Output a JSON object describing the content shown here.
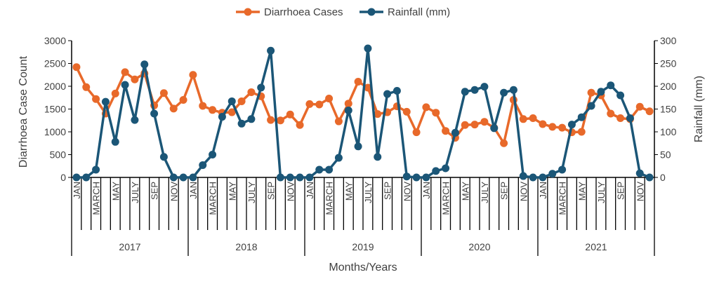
{
  "chart_data": {
    "type": "line",
    "xlabel": "Months/Years",
    "ylabel": "Diarrhoea Case Count",
    "y2label": "Rainfall (mm)",
    "ylim": [
      0,
      3000
    ],
    "y2lim": [
      0,
      300
    ],
    "yticks": [
      "0",
      "500",
      "1000",
      "1500",
      "2000",
      "2500",
      "3000"
    ],
    "y2ticks": [
      "0",
      "50",
      "100",
      "150",
      "200",
      "250",
      "300"
    ],
    "month_labels": [
      "JAN",
      "MARCH",
      "MAY",
      "JULY",
      "SEP",
      "NOV"
    ],
    "years": [
      "2017",
      "2018",
      "2019",
      "2020",
      "2021"
    ],
    "legend_position": "top",
    "grid": false,
    "series": [
      {
        "name": "Diarrhoea Cases",
        "axis": "left",
        "color": "#E8692A",
        "values": [
          2420,
          1980,
          1720,
          1400,
          1840,
          2310,
          2150,
          2280,
          1580,
          1850,
          1510,
          1700,
          2250,
          1570,
          1480,
          1420,
          1430,
          1670,
          1870,
          1780,
          1260,
          1250,
          1380,
          1150,
          1610,
          1600,
          1730,
          1230,
          1620,
          2100,
          1970,
          1390,
          1430,
          1560,
          1440,
          990,
          1540,
          1420,
          1020,
          870,
          1150,
          1160,
          1220,
          1090,
          750,
          1700,
          1280,
          1300,
          1170,
          1110,
          1090,
          990,
          1000,
          1860,
          1800,
          1400,
          1300,
          1280,
          1550,
          1450
        ]
      },
      {
        "name": "Rainfall (mm)",
        "axis": "right",
        "color": "#1B5677",
        "values": [
          0,
          0,
          17,
          166,
          78,
          203,
          126,
          248,
          140,
          45,
          0,
          0,
          0,
          27,
          50,
          133,
          167,
          118,
          128,
          197,
          278,
          0,
          0,
          0,
          0,
          17,
          17,
          43,
          147,
          68,
          283,
          45,
          183,
          190,
          2,
          0,
          0,
          14,
          20,
          98,
          188,
          192,
          199,
          108,
          186,
          192,
          3,
          0,
          0,
          8,
          17,
          116,
          132,
          157,
          188,
          202,
          180,
          130,
          9,
          0
        ]
      }
    ]
  }
}
